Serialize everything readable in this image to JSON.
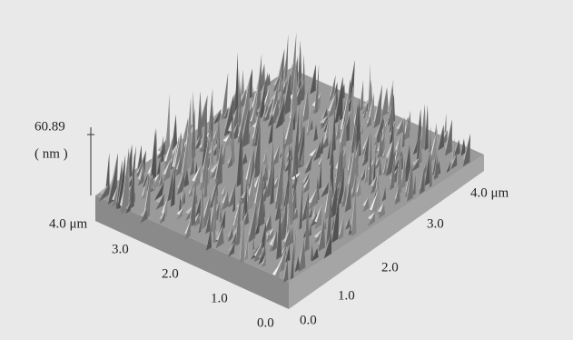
{
  "figure": {
    "z_axis": {
      "max": "60.89",
      "unit": "( nm )"
    },
    "left_axis": {
      "ticks": [
        "4.0 μm",
        "3.0",
        "2.0",
        "1.0",
        "0.0"
      ]
    },
    "right_axis": {
      "ticks": [
        "0.0",
        "1.0",
        "2.0",
        "3.0",
        "4.0 μm"
      ]
    }
  }
}
